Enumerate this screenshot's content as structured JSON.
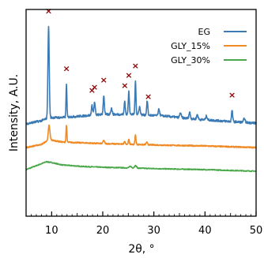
{
  "chart_data": {
    "type": "line",
    "xlabel": "2θ, °",
    "ylabel": "Intensity, A.U.",
    "xlim": [
      5,
      50
    ],
    "x_ticks": [
      10,
      20,
      30,
      40,
      50
    ],
    "y_ticks_labeled": false,
    "grid": false,
    "legend_position": "top-right",
    "series": [
      {
        "name": "EG",
        "color": "#3b7ab5",
        "offset": 88,
        "noise": 1.4,
        "baseline": [
          [
            5,
            0
          ],
          [
            8,
            4
          ],
          [
            9.5,
            8
          ],
          [
            12,
            8
          ],
          [
            16,
            10
          ],
          [
            20,
            12
          ],
          [
            26,
            12
          ],
          [
            32,
            10
          ],
          [
            38,
            6
          ],
          [
            45,
            3
          ],
          [
            50,
            1
          ]
        ],
        "peaks": [
          [
            9.4,
            116,
            0.18
          ],
          [
            12.9,
            42,
            0.12
          ],
          [
            17.9,
            12,
            0.18
          ],
          [
            18.4,
            16,
            0.18
          ],
          [
            20.2,
            24,
            0.16
          ],
          [
            21.7,
            8,
            0.2
          ],
          [
            24.3,
            17,
            0.15
          ],
          [
            25.1,
            30,
            0.15
          ],
          [
            26.4,
            42,
            0.14
          ],
          [
            27.2,
            10,
            0.2
          ],
          [
            28.7,
            18,
            0.16
          ],
          [
            31,
            8,
            0.2
          ],
          [
            35.2,
            6,
            0.2
          ],
          [
            37,
            8,
            0.2
          ],
          [
            38.5,
            6,
            0.2
          ],
          [
            40.3,
            5,
            0.2
          ],
          [
            45.3,
            14,
            0.16
          ],
          [
            47.7,
            5,
            0.2
          ]
        ]
      },
      {
        "name": "GLY_15%",
        "color": "#f08a24",
        "offset": 58,
        "noise": 0.8,
        "baseline": [
          [
            5,
            0
          ],
          [
            8,
            4
          ],
          [
            9.5,
            10
          ],
          [
            12,
            7
          ],
          [
            16,
            6
          ],
          [
            20,
            5
          ],
          [
            26,
            4
          ],
          [
            32,
            3
          ],
          [
            40,
            2
          ],
          [
            50,
            0
          ]
        ],
        "peaks": [
          [
            9.5,
            18,
            0.22
          ],
          [
            12.9,
            22,
            0.12
          ],
          [
            20.2,
            4,
            0.2
          ],
          [
            24.3,
            3,
            0.2
          ],
          [
            25.1,
            6,
            0.15
          ],
          [
            26.4,
            12,
            0.14
          ],
          [
            28.6,
            3,
            0.2
          ]
        ]
      },
      {
        "name": "GLY_30%",
        "color": "#4aa84a",
        "offset": 30,
        "noise": 0.6,
        "baseline": [
          [
            5,
            0
          ],
          [
            7,
            5
          ],
          [
            9,
            10
          ],
          [
            10,
            9
          ],
          [
            12,
            6
          ],
          [
            16,
            4
          ],
          [
            20,
            3
          ],
          [
            26,
            2
          ],
          [
            32,
            1
          ],
          [
            40,
            0
          ],
          [
            50,
            -2
          ]
        ],
        "peaks": [
          [
            25.4,
            2,
            0.3
          ],
          [
            26.4,
            3,
            0.3
          ]
        ]
      }
    ],
    "markers": {
      "symbol": "×",
      "color": "#8b0000",
      "x": [
        9.4,
        12.9,
        17.9,
        18.4,
        20.2,
        24.3,
        25.1,
        26.4,
        28.9,
        45.3
      ]
    }
  }
}
